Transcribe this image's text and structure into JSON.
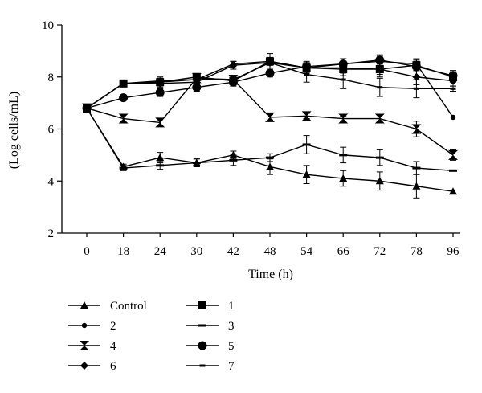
{
  "chart_data": {
    "type": "line",
    "title": "",
    "xlabel": "Time (h)",
    "ylabel": "(Log cells/mL)",
    "categories": [
      "0",
      "18",
      "24",
      "30",
      "42",
      "48",
      "54",
      "66",
      "72",
      "78",
      "96"
    ],
    "ylim": [
      2,
      10
    ],
    "yticks": [
      "2",
      "4",
      "6",
      "8",
      "10"
    ],
    "grid": false,
    "error_bars": true,
    "legend_position": "bottom-left, two columns",
    "series": [
      {
        "name": "Control",
        "marker": "triangle",
        "values": [
          6.8,
          4.55,
          4.9,
          4.7,
          5.0,
          4.55,
          4.25,
          4.1,
          4.0,
          3.8,
          3.6
        ],
        "errors": [
          0.15,
          0.1,
          0.2,
          0.15,
          0.15,
          0.3,
          0.35,
          0.3,
          0.35,
          0.45,
          0.05
        ]
      },
      {
        "name": "1",
        "marker": "square",
        "values": [
          6.8,
          7.75,
          7.8,
          8.0,
          7.85,
          8.6,
          8.35,
          8.3,
          8.3,
          8.45,
          8.0
        ],
        "errors": [
          0.15,
          0.1,
          0.15,
          0.1,
          0.15,
          0.15,
          0.2,
          0.25,
          0.2,
          0.2,
          0.2
        ]
      },
      {
        "name": "2",
        "marker": "small-circle",
        "values": [
          6.8,
          7.75,
          7.8,
          7.9,
          8.5,
          8.6,
          8.35,
          8.5,
          8.6,
          8.5,
          6.45
        ],
        "errors": [
          0.15,
          0.1,
          0.15,
          0.15,
          0.1,
          0.15,
          0.2,
          0.2,
          0.2,
          0.2,
          0.05
        ]
      },
      {
        "name": "3",
        "marker": "dash",
        "values": [
          6.8,
          4.5,
          4.6,
          4.7,
          4.8,
          4.9,
          5.4,
          5.0,
          4.9,
          4.5,
          4.4
        ],
        "errors": [
          0.15,
          0.1,
          0.15,
          0.15,
          0.2,
          0.15,
          0.35,
          0.3,
          0.3,
          0.25,
          0.05
        ]
      },
      {
        "name": "4",
        "marker": "hourglass-square",
        "values": [
          6.8,
          6.4,
          6.25,
          7.95,
          7.9,
          6.45,
          6.5,
          6.4,
          6.4,
          6.0,
          5.0
        ],
        "errors": [
          0.15,
          0.15,
          0.15,
          0.15,
          0.15,
          0.1,
          0.1,
          0.1,
          0.15,
          0.3,
          0.2
        ]
      },
      {
        "name": "5",
        "marker": "circle",
        "values": [
          6.8,
          7.2,
          7.4,
          7.6,
          7.8,
          8.15,
          8.4,
          8.5,
          8.65,
          8.4,
          8.05
        ],
        "errors": [
          0.15,
          0.1,
          0.15,
          0.15,
          0.15,
          0.15,
          0.2,
          0.2,
          0.2,
          0.2,
          0.2
        ]
      },
      {
        "name": "6",
        "marker": "diamond",
        "values": [
          6.8,
          7.75,
          7.75,
          7.8,
          8.45,
          8.55,
          8.35,
          8.35,
          8.3,
          8.0,
          7.85
        ],
        "errors": [
          0.15,
          0.1,
          0.15,
          0.15,
          0.15,
          0.2,
          0.2,
          0.2,
          0.3,
          0.3,
          0.2
        ]
      },
      {
        "name": "7",
        "marker": "small-dash",
        "values": [
          6.8,
          7.75,
          7.85,
          7.9,
          7.9,
          8.55,
          8.1,
          7.9,
          7.6,
          7.55,
          7.55
        ],
        "errors": [
          0.15,
          0.1,
          0.15,
          0.1,
          0.15,
          0.35,
          0.3,
          0.35,
          0.35,
          0.35,
          0.1
        ]
      }
    ]
  }
}
